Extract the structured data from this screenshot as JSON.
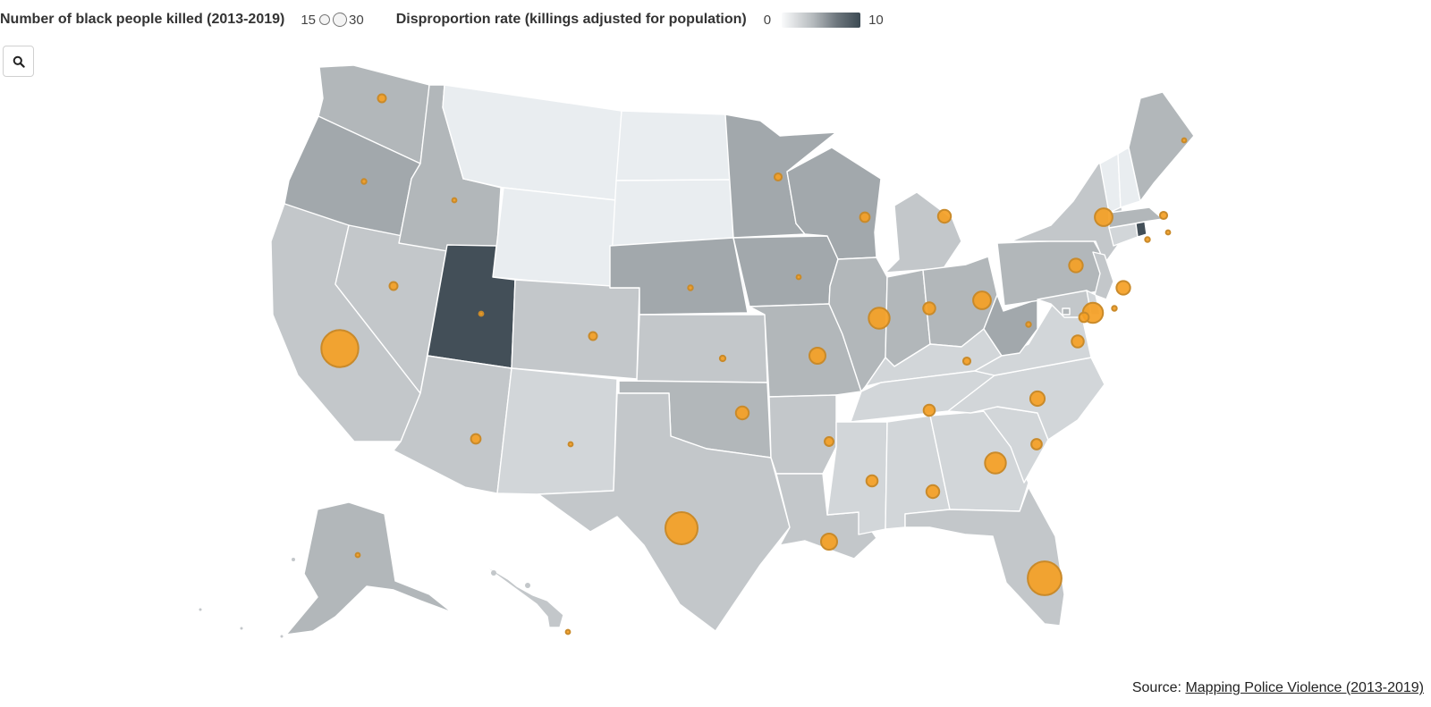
{
  "legend": {
    "size_title": "Number of black people killed (2013-2019)",
    "size_min": "15",
    "size_max": "30",
    "color_title": "Disproportion rate (killings adjusted for population)",
    "color_min": "0",
    "color_max": "10"
  },
  "source": {
    "prefix": "Source: ",
    "link_text": "Mapping Police Violence (2013-2019)"
  },
  "colors": {
    "bubble_fill": "#f5a024",
    "bubble_stroke": "#c98a2a",
    "scale": [
      "#e9edf0",
      "#d2d6d9",
      "#c3c7ca",
      "#b2b7ba",
      "#a2a8ac",
      "#434f58"
    ]
  },
  "map_data": {
    "states": [
      {
        "id": "WA",
        "shade": 3,
        "bubble": 1
      },
      {
        "id": "OR",
        "shade": 4,
        "bubble": 0.6
      },
      {
        "id": "CA",
        "shade": 2,
        "bubble": 4.6
      },
      {
        "id": "NV",
        "shade": 2,
        "bubble": 1
      },
      {
        "id": "ID",
        "shade": 3,
        "bubble": 0.2
      },
      {
        "id": "MT",
        "shade": 0,
        "bubble": 0
      },
      {
        "id": "WY",
        "shade": 0,
        "bubble": 0
      },
      {
        "id": "UT",
        "shade": 5,
        "bubble": 0.5
      },
      {
        "id": "AZ",
        "shade": 2,
        "bubble": 1.2
      },
      {
        "id": "CO",
        "shade": 2,
        "bubble": 1
      },
      {
        "id": "NM",
        "shade": 1,
        "bubble": 0.3
      },
      {
        "id": "ND",
        "shade": 0,
        "bubble": 0
      },
      {
        "id": "SD",
        "shade": 0,
        "bubble": 0
      },
      {
        "id": "NE",
        "shade": 4,
        "bubble": 0.6
      },
      {
        "id": "KS",
        "shade": 2,
        "bubble": 0.7
      },
      {
        "id": "OK",
        "shade": 3,
        "bubble": 1.6
      },
      {
        "id": "TX",
        "shade": 2,
        "bubble": 4.0
      },
      {
        "id": "MN",
        "shade": 4,
        "bubble": 0.9
      },
      {
        "id": "IA",
        "shade": 4,
        "bubble": 0.5
      },
      {
        "id": "MO",
        "shade": 3,
        "bubble": 2.0
      },
      {
        "id": "AR",
        "shade": 2,
        "bubble": 1.1
      },
      {
        "id": "LA",
        "shade": 2,
        "bubble": 2.0
      },
      {
        "id": "WI",
        "shade": 4,
        "bubble": 1.2
      },
      {
        "id": "IL",
        "shade": 3,
        "bubble": 2.6
      },
      {
        "id": "MI",
        "shade": 2,
        "bubble": 1.6
      },
      {
        "id": "IN",
        "shade": 3,
        "bubble": 1.5
      },
      {
        "id": "OH",
        "shade": 3,
        "bubble": 2.2
      },
      {
        "id": "KY",
        "shade": 1,
        "bubble": 0.9
      },
      {
        "id": "TN",
        "shade": 1,
        "bubble": 1.4
      },
      {
        "id": "MS",
        "shade": 1,
        "bubble": 1.4
      },
      {
        "id": "AL",
        "shade": 1,
        "bubble": 1.6
      },
      {
        "id": "GA",
        "shade": 1,
        "bubble": 2.6
      },
      {
        "id": "FL",
        "shade": 2,
        "bubble": 4.2
      },
      {
        "id": "SC",
        "shade": 1,
        "bubble": 1.3
      },
      {
        "id": "NC",
        "shade": 1,
        "bubble": 1.8
      },
      {
        "id": "VA",
        "shade": 1,
        "bubble": 1.5
      },
      {
        "id": "WV",
        "shade": 4,
        "bubble": 0.6
      },
      {
        "id": "PA",
        "shade": 3,
        "bubble": 1.7
      },
      {
        "id": "NY",
        "shade": 2,
        "bubble": 2.2
      },
      {
        "id": "NJ",
        "shade": 2,
        "bubble": 1.7
      },
      {
        "id": "MD",
        "shade": 2,
        "bubble": 2.5
      },
      {
        "id": "DE",
        "shade": 1,
        "bubble": 0.6
      },
      {
        "id": "DC",
        "shade": 3,
        "bubble": 1.2
      },
      {
        "id": "CT",
        "shade": 1,
        "bubble": 0.6
      },
      {
        "id": "RI",
        "shade": 5,
        "bubble": 0.3
      },
      {
        "id": "MA",
        "shade": 3,
        "bubble": 0.9
      },
      {
        "id": "VT",
        "shade": 0,
        "bubble": 0
      },
      {
        "id": "NH",
        "shade": 0,
        "bubble": 0
      },
      {
        "id": "ME",
        "shade": 3,
        "bubble": 0.2
      },
      {
        "id": "AK",
        "shade": 3,
        "bubble": 0.4
      },
      {
        "id": "HI",
        "shade": 2,
        "bubble": 0.2
      }
    ]
  }
}
